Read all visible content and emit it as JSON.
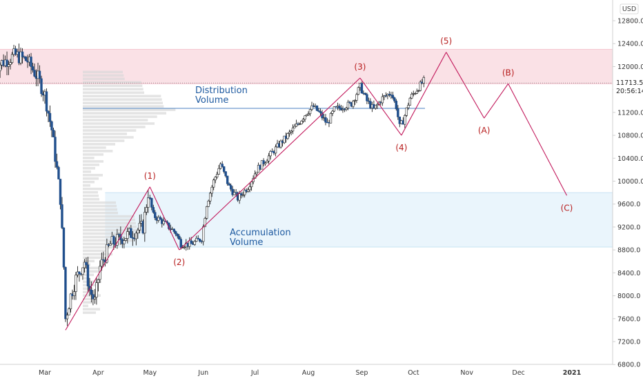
{
  "chart_data": {
    "type": "candlestick",
    "currency": "USD",
    "last_price": "11713.5",
    "countdown": "20:56:14",
    "y_ticks": [
      "12800.0",
      "12400.0",
      "12000.0",
      "11600.0",
      "11200.0",
      "10800.0",
      "10400.0",
      "10000.0",
      "9600.0",
      "9200.0",
      "8800.0",
      "8400.0",
      "8000.0",
      "7600.0",
      "7200.0",
      "6800.0"
    ],
    "x_ticks": [
      "Mar",
      "Apr",
      "May",
      "Jun",
      "Jul",
      "Aug",
      "Sep",
      "Oct",
      "Nov",
      "Dec",
      "2021"
    ],
    "zones": [
      {
        "name": "distribution-zone",
        "ymin": 11700,
        "ymax": 12300,
        "color": "#f8d7de"
      },
      {
        "name": "accumulation-zone",
        "ymin": 8850,
        "ymax": 9800,
        "color": "#e3f2fb"
      }
    ],
    "zone_labels": [
      {
        "name": "distribution-label",
        "lines": [
          "Distribution",
          "Volume"
        ],
        "color": "#1e5aa0"
      },
      {
        "name": "accumulation-label",
        "lines": [
          "Accumulation",
          "Volume"
        ],
        "color": "#1e5aa0"
      }
    ],
    "poc_price": 11270,
    "wave_points": [
      {
        "date": "2020-03-13",
        "price": 7400,
        "label": ""
      },
      {
        "date": "2020-05-01",
        "price": 9900,
        "label": "(1)"
      },
      {
        "date": "2020-05-18",
        "price": 8800,
        "label": "(2)"
      },
      {
        "date": "2020-08-31",
        "price": 11800,
        "label": "(3)"
      },
      {
        "date": "2020-09-24",
        "price": 10800,
        "label": "(4)"
      },
      {
        "date": "2020-10-20",
        "price": 12250,
        "label": "(5)"
      },
      {
        "date": "2020-11-11",
        "price": 11100,
        "label": "(A)"
      },
      {
        "date": "2020-11-25",
        "price": 11700,
        "label": "(B)"
      },
      {
        "date": "2020-12-29",
        "price": 9750,
        "label": "(C)"
      }
    ],
    "wave_color": "#c2185b",
    "label_color": "#b71c1c",
    "price_path": [
      [
        "2020-02-01",
        12000
      ],
      [
        "2020-02-13",
        12200
      ],
      [
        "2020-02-20",
        12100
      ],
      [
        "2020-02-26",
        11800
      ],
      [
        "2020-03-01",
        11500
      ],
      [
        "2020-03-05",
        10900
      ],
      [
        "2020-03-08",
        10200
      ],
      [
        "2020-03-10",
        9700
      ],
      [
        "2020-03-12",
        8500
      ],
      [
        "2020-03-13",
        7600
      ],
      [
        "2020-03-16",
        8000
      ],
      [
        "2020-03-19",
        8300
      ],
      [
        "2020-03-24",
        8600
      ],
      [
        "2020-03-27",
        8100
      ],
      [
        "2020-03-30",
        7900
      ],
      [
        "2020-04-02",
        8500
      ],
      [
        "2020-04-08",
        8900
      ],
      [
        "2020-04-14",
        9000
      ],
      [
        "2020-04-21",
        9100
      ],
      [
        "2020-04-27",
        9200
      ],
      [
        "2020-04-30",
        9800
      ],
      [
        "2020-05-03",
        9400
      ],
      [
        "2020-05-08",
        9300
      ],
      [
        "2020-05-12",
        9200
      ],
      [
        "2020-05-16",
        9100
      ],
      [
        "2020-05-19",
        8900
      ],
      [
        "2020-05-25",
        8900
      ],
      [
        "2020-05-31",
        9000
      ],
      [
        "2020-06-03",
        9600
      ],
      [
        "2020-06-07",
        10000
      ],
      [
        "2020-06-11",
        10300
      ],
      [
        "2020-06-16",
        9900
      ],
      [
        "2020-06-21",
        9700
      ],
      [
        "2020-06-27",
        9900
      ],
      [
        "2020-07-02",
        10200
      ],
      [
        "2020-07-08",
        10400
      ],
      [
        "2020-07-14",
        10600
      ],
      [
        "2020-07-20",
        10800
      ],
      [
        "2020-07-26",
        11000
      ],
      [
        "2020-07-31",
        11200
      ],
      [
        "2020-08-04",
        11300
      ],
      [
        "2020-08-07",
        11200
      ],
      [
        "2020-08-12",
        11000
      ],
      [
        "2020-08-16",
        11250
      ],
      [
        "2020-08-21",
        11300
      ],
      [
        "2020-08-26",
        11350
      ],
      [
        "2020-08-31",
        11650
      ],
      [
        "2020-09-04",
        11400
      ],
      [
        "2020-09-08",
        11250
      ],
      [
        "2020-09-13",
        11450
      ],
      [
        "2020-09-18",
        11550
      ],
      [
        "2020-09-21",
        11300
      ],
      [
        "2020-09-23",
        10950
      ],
      [
        "2020-09-25",
        11050
      ],
      [
        "2020-09-29",
        11450
      ],
      [
        "2020-10-03",
        11600
      ],
      [
        "2020-10-07",
        11750
      ]
    ],
    "volume_profile_max_price_level": 11270
  }
}
